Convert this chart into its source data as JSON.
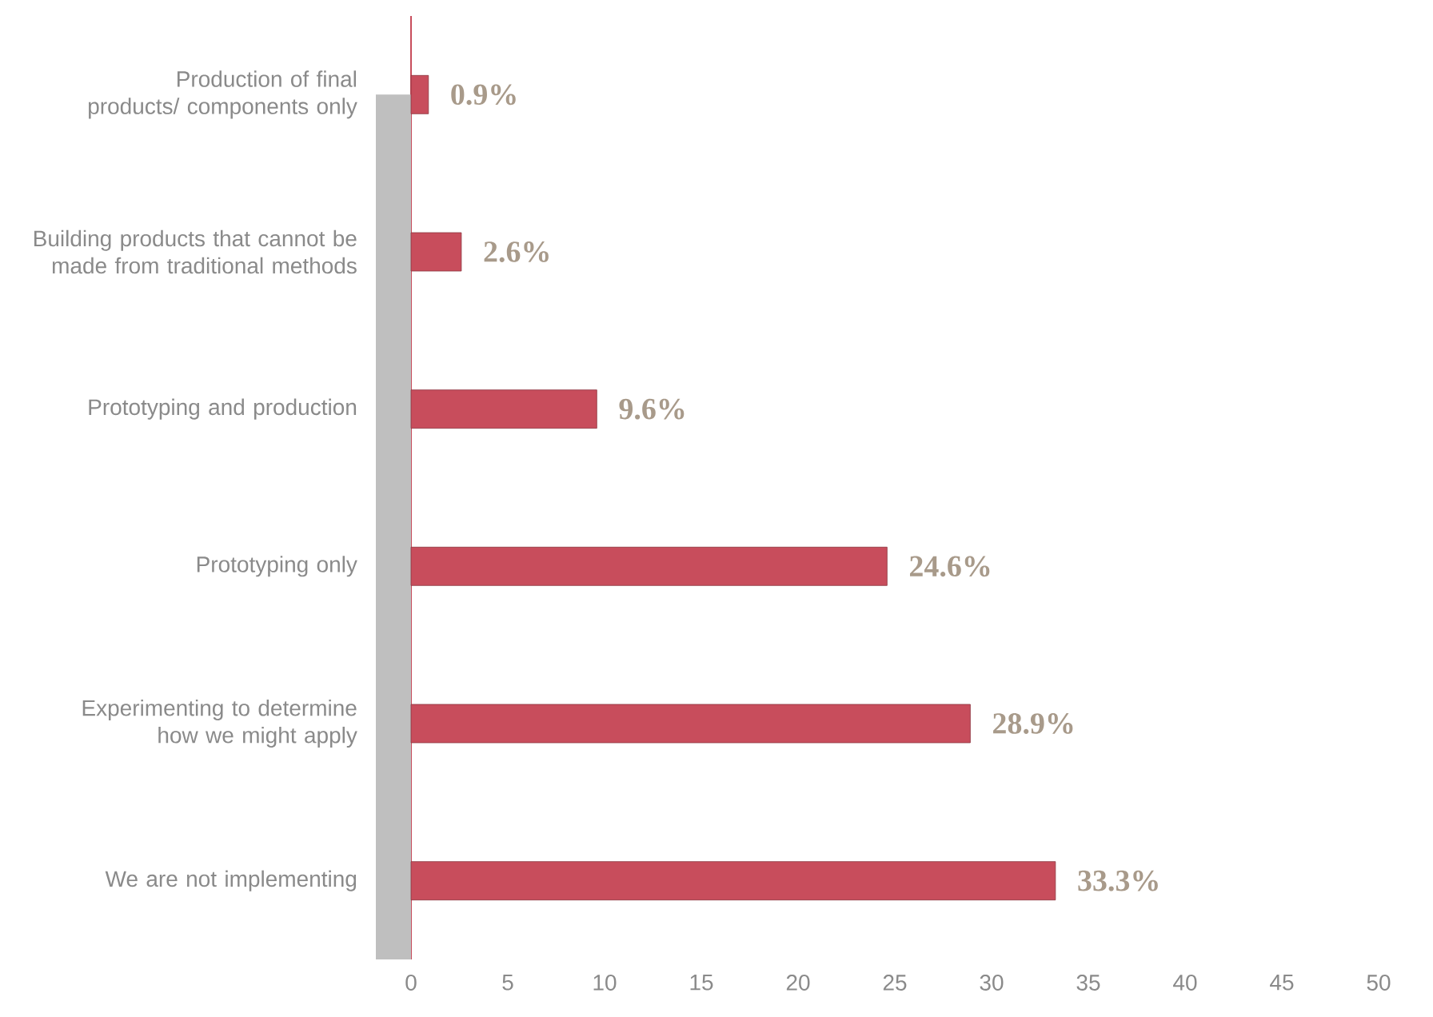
{
  "chart_data": {
    "type": "bar",
    "orientation": "horizontal",
    "categories": [
      "Production of final products/ components only",
      "Building products that cannot be made from traditional methods",
      "Prototyping and production",
      "Prototyping only",
      "Experimenting to determine how we might apply",
      "We are not implementing"
    ],
    "values": [
      0.9,
      2.6,
      9.6,
      24.6,
      28.9,
      33.3
    ],
    "value_labels": [
      "0.9%",
      "2.6%",
      "9.6%",
      "24.6%",
      "28.9%",
      "33.3%"
    ],
    "color": "#c84d5c",
    "xlim": [
      0,
      50
    ],
    "xticks": [
      0,
      5,
      10,
      15,
      20,
      25,
      30,
      35,
      40,
      45,
      50
    ]
  }
}
